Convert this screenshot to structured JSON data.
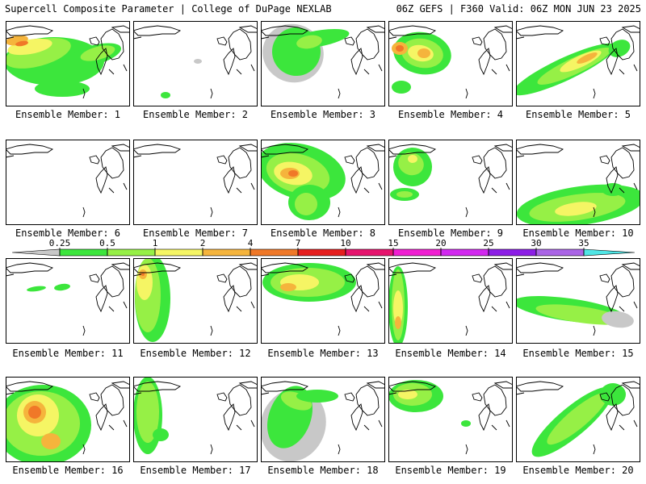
{
  "header": {
    "left": "Supercell Composite Parameter | College of DuPage NEXLAB",
    "right": "06Z GEFS | F360 Valid: 06Z MON JUN 23 2025"
  },
  "colorbar": {
    "ticks": [
      "0.25",
      "0.5",
      "1",
      "2",
      "4",
      "7",
      "10",
      "15",
      "20",
      "25",
      "30",
      "35"
    ],
    "colors": [
      "#c8c8c8",
      "#3ce63c",
      "#96f046",
      "#f5f564",
      "#f5b43c",
      "#f07828",
      "#e61e1e",
      "#e6146e",
      "#f01ed2",
      "#d228f0",
      "#8c1ee6",
      "#aa64e6",
      "#50e6e6"
    ]
  },
  "panels": [
    {
      "label": "Ensemble Member: 1"
    },
    {
      "label": "Ensemble Member: 2"
    },
    {
      "label": "Ensemble Member: 3"
    },
    {
      "label": "Ensemble Member: 4"
    },
    {
      "label": "Ensemble Member: 5"
    },
    {
      "label": "Ensemble Member: 6"
    },
    {
      "label": "Ensemble Member: 7"
    },
    {
      "label": "Ensemble Member: 8"
    },
    {
      "label": "Ensemble Member: 9"
    },
    {
      "label": "Ensemble Member: 10"
    },
    {
      "label": "Ensemble Member: 11"
    },
    {
      "label": "Ensemble Member: 12"
    },
    {
      "label": "Ensemble Member: 13"
    },
    {
      "label": "Ensemble Member: 14"
    },
    {
      "label": "Ensemble Member: 15"
    },
    {
      "label": "Ensemble Member: 16"
    },
    {
      "label": "Ensemble Member: 17"
    },
    {
      "label": "Ensemble Member: 18"
    },
    {
      "label": "Ensemble Member: 19"
    },
    {
      "label": "Ensemble Member: 20"
    }
  ]
}
